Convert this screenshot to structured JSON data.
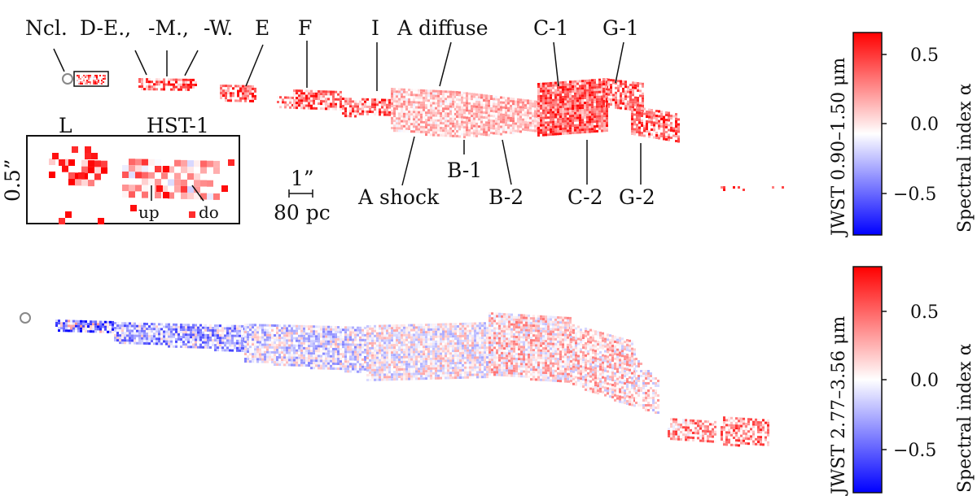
{
  "top_panel": {
    "features": [
      {
        "id": "ncl",
        "text": "Ncl."
      },
      {
        "id": "de",
        "text": "D-E.,"
      },
      {
        "id": "dm",
        "text": "-M.,"
      },
      {
        "id": "dw",
        "text": "-W."
      },
      {
        "id": "e",
        "text": "E"
      },
      {
        "id": "f",
        "text": "F"
      },
      {
        "id": "i",
        "text": "I"
      },
      {
        "id": "adiff",
        "text": "A diffuse"
      },
      {
        "id": "c1",
        "text": "C-1"
      },
      {
        "id": "g1",
        "text": "G-1"
      },
      {
        "id": "ashock",
        "text": "A shock"
      },
      {
        "id": "b1",
        "text": "B-1"
      },
      {
        "id": "b2",
        "text": "B-2"
      },
      {
        "id": "c2",
        "text": "C-2"
      },
      {
        "id": "g2",
        "text": "G-2"
      }
    ],
    "inset": {
      "labels": [
        {
          "id": "L",
          "text": "L"
        },
        {
          "id": "hst1",
          "text": "HST-1"
        },
        {
          "id": "up",
          "text": "up"
        },
        {
          "id": "do",
          "text": "do"
        }
      ],
      "scale_label": "0.5”"
    },
    "scalebar": {
      "top": "1”",
      "bottom": "80 pc"
    },
    "colorbar": {
      "axis_label_wavelength": "JWST 0.90–1.50 μm",
      "axis_label_index": "Spectral index α",
      "ticks": [
        "0.5",
        "0.0",
        "−0.5"
      ]
    }
  },
  "bottom_panel": {
    "colorbar": {
      "axis_label_wavelength": "JWST 2.77–3.56 μm",
      "axis_label_index": "Spectral index α",
      "ticks": [
        "0.5",
        "0.0",
        "−0.5"
      ]
    }
  },
  "colors": {
    "red": "#ff0000",
    "white": "#ffffff",
    "blue": "#0000ff",
    "ring": "#888888"
  }
}
